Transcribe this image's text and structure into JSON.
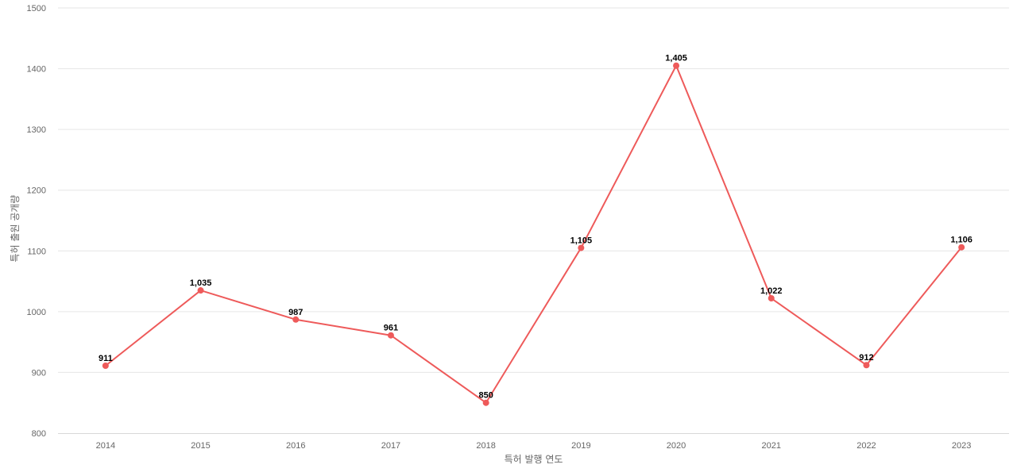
{
  "chart_data": {
    "type": "line",
    "title": "",
    "xlabel": "특허 발행 연도",
    "ylabel": "특허 출원 공개량",
    "ylim": [
      800,
      1500
    ],
    "yticks": [
      800,
      900,
      1000,
      1100,
      1200,
      1300,
      1400,
      1500
    ],
    "categories": [
      "2014",
      "2015",
      "2016",
      "2017",
      "2018",
      "2019",
      "2020",
      "2021",
      "2022",
      "2023"
    ],
    "series": [
      {
        "values": [
          911,
          1035,
          987,
          961,
          850,
          1105,
          1405,
          1022,
          912,
          1106
        ],
        "labels": [
          "911",
          "1,035",
          "987",
          "961",
          "850",
          "1,105",
          "1,405",
          "1,022",
          "912",
          "1,106"
        ]
      }
    ],
    "grid": true,
    "legend": "none",
    "colors": {
      "series": "#ee5a5a"
    }
  }
}
